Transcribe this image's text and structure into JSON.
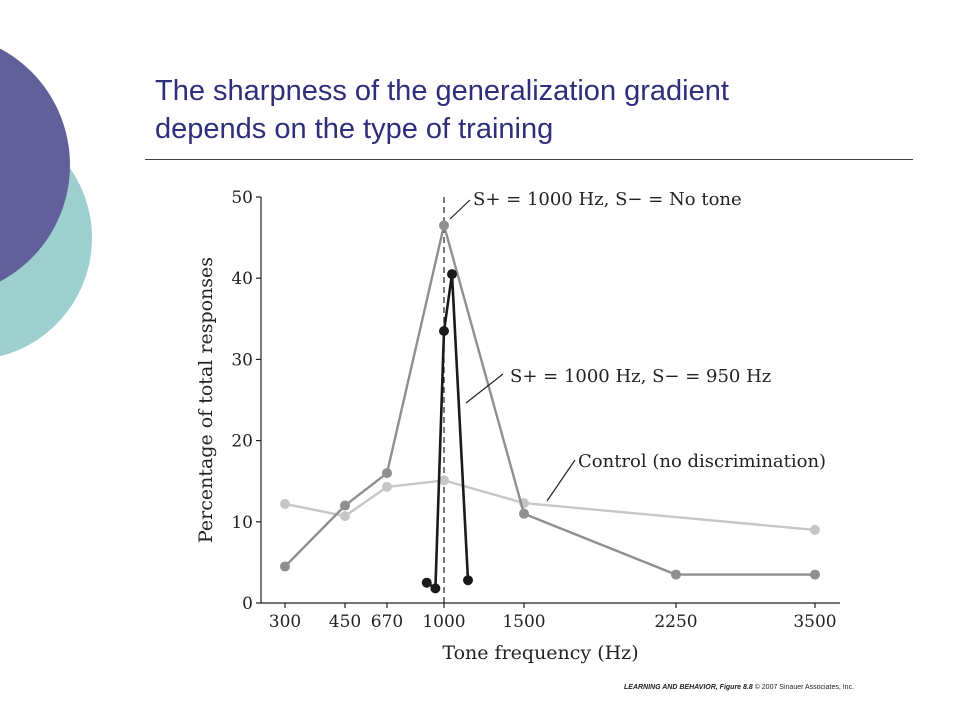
{
  "slide": {
    "title_line1": "The sharpness of the generalization gradient",
    "title_line2": "depends on the type of training",
    "credit_book": "LEARNING AND BEHAVIOR, Figure 8.8",
    "credit_rest": "© 2007 Sinauer Associates, Inc.",
    "colors": {
      "title": "#2e2e7a",
      "deco_purple": "#62609a",
      "deco_teal": "#9dcfcf"
    }
  },
  "chart_data": {
    "type": "line",
    "xlabel": "Tone frequency (Hz)",
    "ylabel": "Percentage of total responses",
    "ylim": [
      0,
      50
    ],
    "yticks": [
      0,
      10,
      20,
      30,
      40,
      50
    ],
    "xticks": [
      "300",
      "450",
      "670",
      "1000",
      "1500",
      "2250",
      "3500"
    ],
    "reference_line": {
      "x": "1000",
      "style": "dashed"
    },
    "series": [
      {
        "name": "S+ = 1000 Hz, S− = No tone",
        "color": "#8f8f8f",
        "points": [
          [
            "300",
            4.5
          ],
          [
            "450",
            12
          ],
          [
            "670",
            16
          ],
          [
            "1000",
            46.5
          ],
          [
            "1500",
            11
          ],
          [
            "2250",
            3.5
          ],
          [
            "3500",
            3.5
          ]
        ]
      },
      {
        "name": "S+ = 1000 Hz, S− = 950 Hz",
        "color": "#1a1a1a",
        "points": [
          [
            "900",
            2.5
          ],
          [
            "950",
            1.8
          ],
          [
            "1000",
            33.5
          ],
          [
            "1050",
            40.5
          ],
          [
            "1150",
            2.8
          ]
        ]
      },
      {
        "name": "Control (no discrimination)",
        "color": "#c6c6c6",
        "points": [
          [
            "300",
            12.2
          ],
          [
            "450",
            10.7
          ],
          [
            "670",
            14.3
          ],
          [
            "1000",
            15.1
          ],
          [
            "1500",
            12.3
          ],
          [
            "3500",
            9
          ]
        ]
      }
    ]
  }
}
